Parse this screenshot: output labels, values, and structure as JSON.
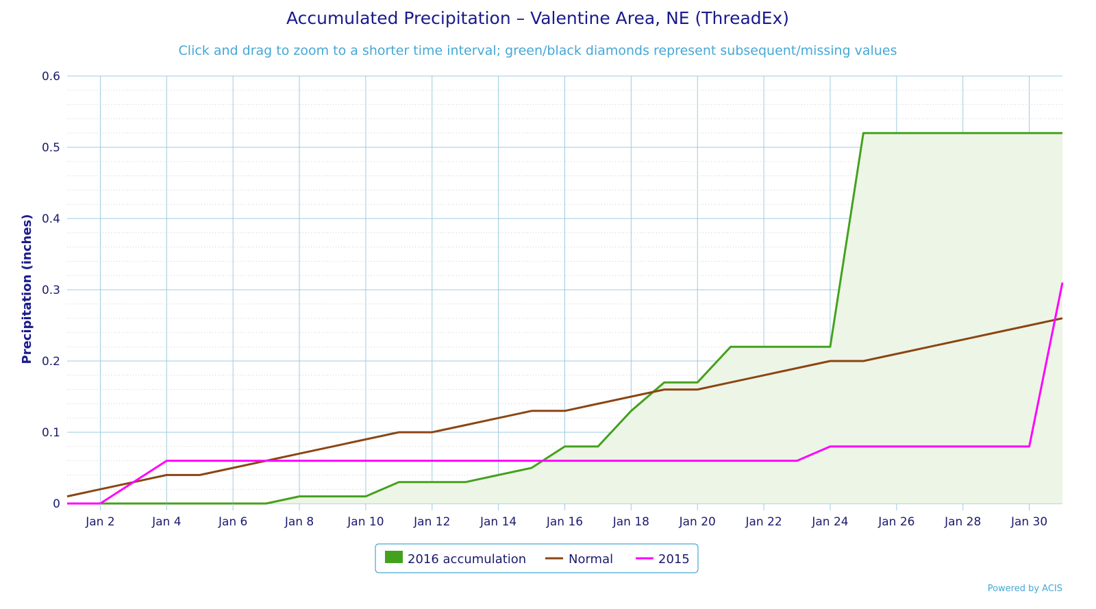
{
  "chart_data": {
    "type": "line",
    "title": "Accumulated Precipitation – Valentine Area, NE (ThreadEx)",
    "subtitle": "Click and drag to zoom to a shorter time interval; green/black diamonds represent subsequent/missing values",
    "xlabel": "",
    "ylabel": "Precipitation (inches)",
    "ylim": [
      0,
      0.6
    ],
    "y_ticks": [
      "0",
      "0.1",
      "0.2",
      "0.3",
      "0.4",
      "0.5",
      "0.6"
    ],
    "x_tick_labels": [
      "Jan 2",
      "Jan 4",
      "Jan 6",
      "Jan 8",
      "Jan 10",
      "Jan 12",
      "Jan 14",
      "Jan 16",
      "Jan 18",
      "Jan 20",
      "Jan 22",
      "Jan 24",
      "Jan 26",
      "Jan 28",
      "Jan 30"
    ],
    "x": [
      "Jan 1",
      "Jan 2",
      "Jan 3",
      "Jan 4",
      "Jan 5",
      "Jan 6",
      "Jan 7",
      "Jan 8",
      "Jan 9",
      "Jan 10",
      "Jan 11",
      "Jan 12",
      "Jan 13",
      "Jan 14",
      "Jan 15",
      "Jan 16",
      "Jan 17",
      "Jan 18",
      "Jan 19",
      "Jan 20",
      "Jan 21",
      "Jan 22",
      "Jan 23",
      "Jan 24",
      "Jan 25",
      "Jan 26",
      "Jan 27",
      "Jan 28",
      "Jan 29",
      "Jan 30",
      "Jan 31"
    ],
    "grid": true,
    "legend_position": "bottom-center",
    "series": [
      {
        "name": "2016 accumulation",
        "style": "area",
        "color": "#44a11e",
        "fill": "#edf5e6",
        "values": [
          0,
          0,
          0,
          0,
          0,
          0,
          0,
          0.01,
          0.01,
          0.01,
          0.03,
          0.03,
          0.03,
          0.04,
          0.05,
          0.08,
          0.08,
          0.13,
          0.17,
          0.17,
          0.22,
          0.22,
          0.22,
          0.22,
          0.52,
          0.52,
          0.52,
          0.52,
          0.52,
          0.52,
          0.52
        ]
      },
      {
        "name": "Normal",
        "style": "line",
        "color": "#8b4513",
        "values": [
          0.01,
          0.02,
          0.03,
          0.04,
          0.04,
          0.05,
          0.06,
          0.07,
          0.08,
          0.09,
          0.1,
          0.1,
          0.11,
          0.12,
          0.13,
          0.13,
          0.14,
          0.15,
          0.16,
          0.16,
          0.17,
          0.18,
          0.19,
          0.2,
          0.2,
          0.21,
          0.22,
          0.23,
          0.24,
          0.25,
          0.26
        ]
      },
      {
        "name": "2015",
        "style": "line",
        "color": "#ff00ff",
        "values": [
          0,
          0,
          0.03,
          0.06,
          0.06,
          0.06,
          0.06,
          0.06,
          0.06,
          0.06,
          0.06,
          0.06,
          0.06,
          0.06,
          0.06,
          0.06,
          0.06,
          0.06,
          0.06,
          0.06,
          0.06,
          0.06,
          0.06,
          0.08,
          0.08,
          0.08,
          0.08,
          0.08,
          0.08,
          0.08,
          0.31
        ]
      }
    ],
    "credit": "Powered by ACIS"
  },
  "colors": {
    "title": "#1a1a8c",
    "subtitle": "#45a7d6",
    "major_grid": "#9ccbe0",
    "minor_grid": "#cccccc",
    "legend_border": "#45a7d6"
  }
}
